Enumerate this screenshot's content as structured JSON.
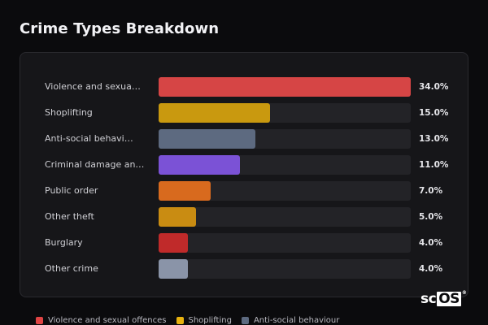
{
  "title": "Crime Types Breakdown",
  "chart_data": {
    "type": "bar",
    "orientation": "horizontal",
    "title": "Crime Types Breakdown",
    "xlim": [
      0,
      34
    ],
    "categories": [
      "Violence and sexua…",
      "Shoplifting",
      "Anti-social behavi…",
      "Criminal damage an…",
      "Public order",
      "Other theft",
      "Burglary",
      "Other crime"
    ],
    "values": [
      34.0,
      15.0,
      13.0,
      11.0,
      7.0,
      5.0,
      4.0,
      4.0
    ],
    "value_labels": [
      "34.0%",
      "15.0%",
      "13.0%",
      "11.0%",
      "7.0%",
      "5.0%",
      "4.0%",
      "4.0%"
    ],
    "colors": [
      "#d64545",
      "#c9990f",
      "#5d6a80",
      "#7b52d6",
      "#d86a1e",
      "#c98c12",
      "#c02a2a",
      "#8a94a8"
    ],
    "legend": {
      "placement": "bottom-left",
      "entries": [
        {
          "name": "Violence and sexual offences",
          "color": "#e04444"
        },
        {
          "name": "Shoplifting",
          "color": "#e8b20f"
        },
        {
          "name": "Anti-social behaviour",
          "color": "#5d6a80"
        }
      ]
    }
  },
  "logo": {
    "text_left": "sc",
    "text_box": "OS",
    "mark": "®"
  },
  "colors": {
    "background": "#0b0b0d",
    "panel": "#161619",
    "track": "#232327"
  }
}
